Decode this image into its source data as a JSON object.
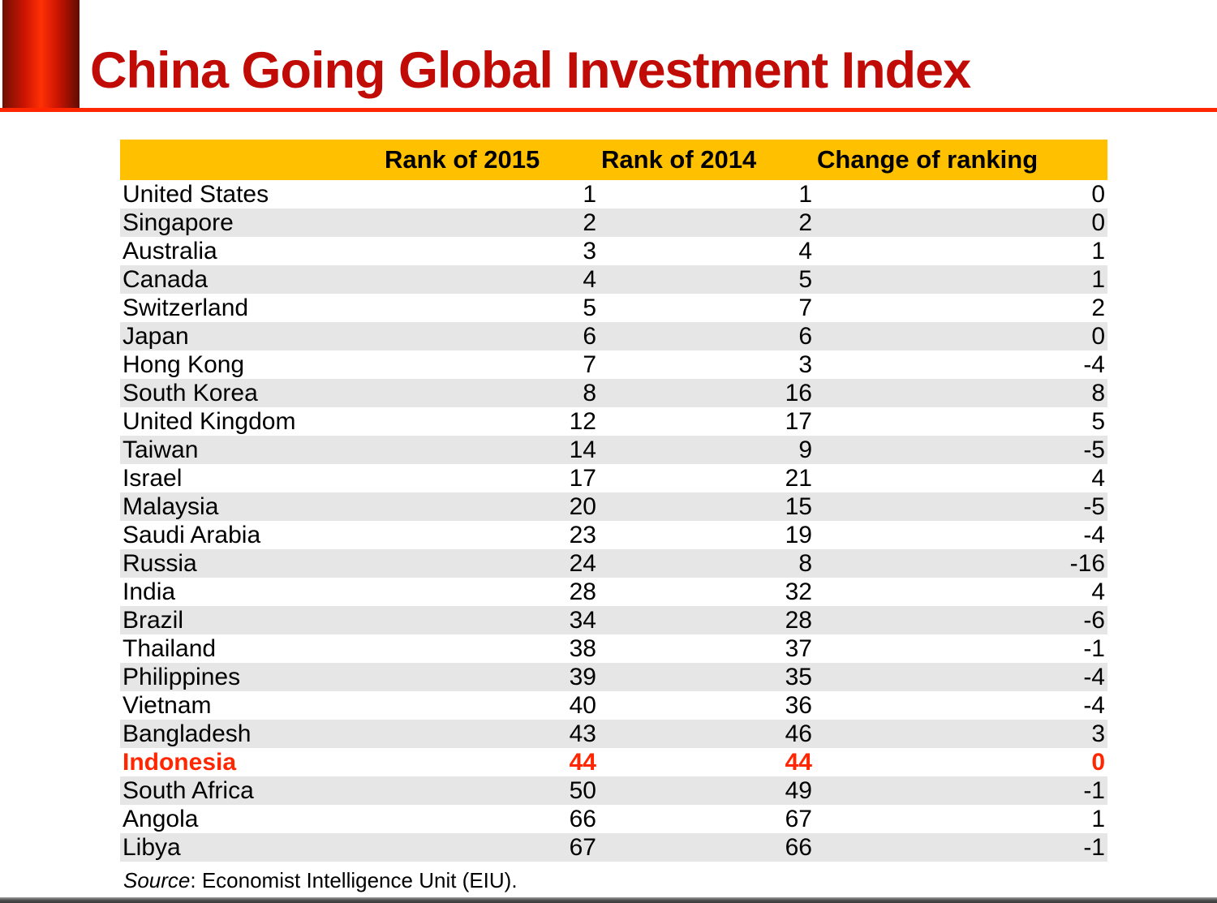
{
  "slide": {
    "title": "China Going Global Investment Index"
  },
  "source": {
    "label": "Source",
    "rest": ": Economist Intelligence Unit (EIU)."
  },
  "colors": {
    "title_text": "#c00b06",
    "accent_rule": "#ff2600",
    "header_background": "#ffc000",
    "alt_row_background": "#e7e6e6",
    "highlight_text": "#ff2600",
    "bottom_rule": "#4a4a4a"
  },
  "table": {
    "headers": [
      "",
      "Rank of 2015",
      "Rank of 2014",
      "Change of ranking"
    ],
    "rows": [
      {
        "country": "United States",
        "rank2015": "1",
        "rank2014": "1",
        "change": "0",
        "highlight": false
      },
      {
        "country": "Singapore",
        "rank2015": "2",
        "rank2014": "2",
        "change": "0",
        "highlight": false
      },
      {
        "country": "Australia",
        "rank2015": "3",
        "rank2014": "4",
        "change": "1",
        "highlight": false
      },
      {
        "country": "Canada",
        "rank2015": "4",
        "rank2014": "5",
        "change": "1",
        "highlight": false
      },
      {
        "country": "Switzerland",
        "rank2015": "5",
        "rank2014": "7",
        "change": "2",
        "highlight": false
      },
      {
        "country": "Japan",
        "rank2015": "6",
        "rank2014": "6",
        "change": "0",
        "highlight": false
      },
      {
        "country": "Hong Kong",
        "rank2015": "7",
        "rank2014": "3",
        "change": "-4",
        "highlight": false
      },
      {
        "country": "South Korea",
        "rank2015": "8",
        "rank2014": "16",
        "change": "8",
        "highlight": false
      },
      {
        "country": "United Kingdom",
        "rank2015": "12",
        "rank2014": "17",
        "change": "5",
        "highlight": false
      },
      {
        "country": "Taiwan",
        "rank2015": "14",
        "rank2014": "9",
        "change": "-5",
        "highlight": false
      },
      {
        "country": "Israel",
        "rank2015": "17",
        "rank2014": "21",
        "change": "4",
        "highlight": false
      },
      {
        "country": "Malaysia",
        "rank2015": "20",
        "rank2014": "15",
        "change": "-5",
        "highlight": false
      },
      {
        "country": "Saudi Arabia",
        "rank2015": "23",
        "rank2014": "19",
        "change": "-4",
        "highlight": false
      },
      {
        "country": "Russia",
        "rank2015": "24",
        "rank2014": "8",
        "change": "-16",
        "highlight": false
      },
      {
        "country": "India",
        "rank2015": "28",
        "rank2014": "32",
        "change": "4",
        "highlight": false
      },
      {
        "country": "Brazil",
        "rank2015": "34",
        "rank2014": "28",
        "change": "-6",
        "highlight": false
      },
      {
        "country": "Thailand",
        "rank2015": "38",
        "rank2014": "37",
        "change": "-1",
        "highlight": false
      },
      {
        "country": "Philippines",
        "rank2015": "39",
        "rank2014": "35",
        "change": "-4",
        "highlight": false
      },
      {
        "country": "Vietnam",
        "rank2015": "40",
        "rank2014": "36",
        "change": "-4",
        "highlight": false
      },
      {
        "country": "Bangladesh",
        "rank2015": "43",
        "rank2014": "46",
        "change": "3",
        "highlight": false
      },
      {
        "country": "Indonesia",
        "rank2015": "44",
        "rank2014": "44",
        "change": "0",
        "highlight": true
      },
      {
        "country": "South Africa",
        "rank2015": "50",
        "rank2014": "49",
        "change": "-1",
        "highlight": false
      },
      {
        "country": "Angola",
        "rank2015": "66",
        "rank2014": "67",
        "change": "1",
        "highlight": false
      },
      {
        "country": "Libya",
        "rank2015": "67",
        "rank2014": "66",
        "change": "-1",
        "highlight": false
      }
    ]
  }
}
